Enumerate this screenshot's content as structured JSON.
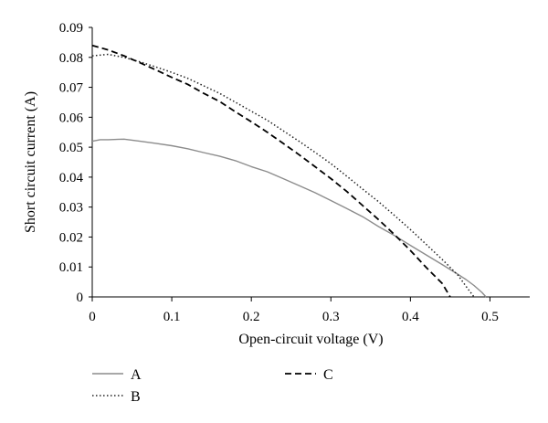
{
  "chart_data": {
    "type": "line",
    "title": "",
    "xlabel": "Open-circuit voltage (V)",
    "ylabel": "Short circuit current (A)",
    "xlim": [
      0,
      0.55
    ],
    "ylim": [
      0,
      0.09
    ],
    "xticks": [
      0,
      0.1,
      0.2,
      0.3,
      0.4,
      0.5
    ],
    "xtick_labels": [
      "0",
      "0.1",
      "0.2",
      "0.3",
      "0.4",
      "0.5"
    ],
    "yticks": [
      0,
      0.01,
      0.02,
      0.03,
      0.04,
      0.05,
      0.06,
      0.07,
      0.08,
      0.09
    ],
    "ytick_labels": [
      "0",
      "0.01",
      "0.02",
      "0.03",
      "0.04",
      "0.05",
      "0.06",
      "0.07",
      "0.08",
      "0.09"
    ],
    "grid": false,
    "legend_position": "bottom",
    "series": [
      {
        "name": "A",
        "style": "solid",
        "color": "#8c8c8c",
        "x": [
          0,
          0.01,
          0.02,
          0.04,
          0.06,
          0.08,
          0.1,
          0.12,
          0.14,
          0.16,
          0.18,
          0.2,
          0.22,
          0.24,
          0.26,
          0.28,
          0.3,
          0.32,
          0.34,
          0.36,
          0.38,
          0.4,
          0.42,
          0.44,
          0.46,
          0.47,
          0.48,
          0.49,
          0.495
        ],
        "y": [
          0.052,
          0.0525,
          0.0525,
          0.0527,
          0.052,
          0.0513,
          0.0505,
          0.0495,
          0.0482,
          0.047,
          0.0455,
          0.0435,
          0.0418,
          0.0395,
          0.0372,
          0.0348,
          0.0322,
          0.0295,
          0.0268,
          0.0235,
          0.0205,
          0.0172,
          0.014,
          0.0108,
          0.0075,
          0.0058,
          0.0038,
          0.0015,
          0
        ]
      },
      {
        "name": "B",
        "style": "dotted",
        "color": "#222222",
        "x": [
          0,
          0.02,
          0.04,
          0.06,
          0.08,
          0.1,
          0.12,
          0.14,
          0.16,
          0.18,
          0.2,
          0.22,
          0.24,
          0.26,
          0.28,
          0.3,
          0.32,
          0.34,
          0.36,
          0.38,
          0.4,
          0.42,
          0.44,
          0.46,
          0.47,
          0.48
        ],
        "y": [
          0.0805,
          0.081,
          0.08,
          0.0785,
          0.0768,
          0.075,
          0.073,
          0.0705,
          0.068,
          0.065,
          0.062,
          0.059,
          0.0555,
          0.052,
          0.0483,
          0.0445,
          0.0403,
          0.036,
          0.0318,
          0.0272,
          0.0225,
          0.0175,
          0.0125,
          0.0072,
          0.0035,
          0
        ]
      },
      {
        "name": "C",
        "style": "dashed",
        "color": "#000000",
        "x": [
          0,
          0.02,
          0.04,
          0.06,
          0.08,
          0.1,
          0.12,
          0.14,
          0.16,
          0.18,
          0.2,
          0.22,
          0.24,
          0.26,
          0.28,
          0.3,
          0.32,
          0.34,
          0.36,
          0.38,
          0.4,
          0.42,
          0.44,
          0.45
        ],
        "y": [
          0.084,
          0.0825,
          0.0805,
          0.0782,
          0.0758,
          0.0733,
          0.071,
          0.068,
          0.0653,
          0.0618,
          0.0585,
          0.055,
          0.0513,
          0.0475,
          0.0435,
          0.0395,
          0.0352,
          0.0305,
          0.0258,
          0.0208,
          0.0155,
          0.0098,
          0.0045,
          0
        ]
      }
    ]
  }
}
